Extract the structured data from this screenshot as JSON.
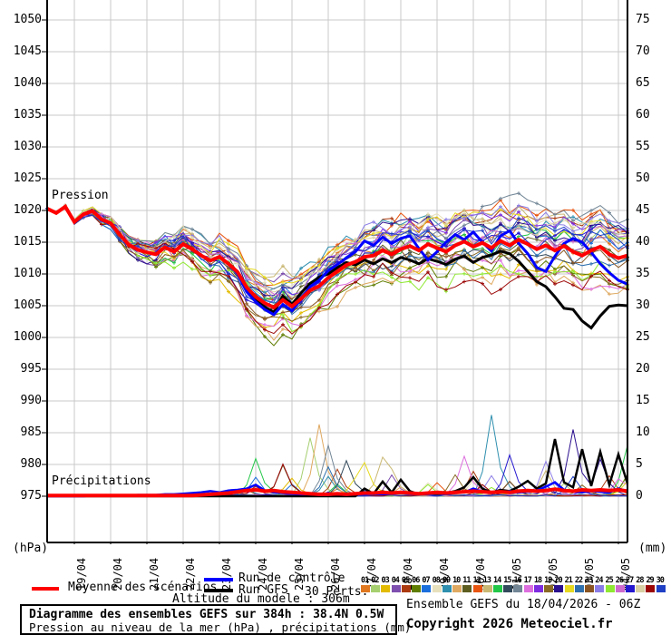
{
  "chart_data": {
    "type": "line",
    "description": "GEFS ensemble diagram: sea-level pressure (top curves) and precipitation (bottom spikes) for 33 runs over 384h",
    "step_hours": 6,
    "total_hours": 384,
    "x_dates": [
      "19/04",
      "20/04",
      "21/04",
      "22/04",
      "23/04",
      "24/04",
      "25/04",
      "26/04",
      "27/04",
      "28/04",
      "29/04",
      "30/04",
      "01/05",
      "02/05",
      "03/05",
      "04/05"
    ],
    "pressure_axis": {
      "label": "(hPa)",
      "min": 975,
      "max": 1050,
      "tick": 5
    },
    "precip_axis": {
      "label": "(mm)",
      "min": 0,
      "max": 75,
      "tick": 5
    },
    "title_labels": {
      "pressure": "Pression",
      "precip": "Précipitations"
    },
    "grid": true,
    "series": {
      "mean_pressure": [
        1020.3,
        1019.6,
        1020.6,
        1018.2,
        1019.4,
        1019.9,
        1018.6,
        1018.0,
        1016.2,
        1014.6,
        1013.8,
        1013.4,
        1013.1,
        1014.2,
        1013.5,
        1014.7,
        1013.9,
        1012.9,
        1012.1,
        1012.7,
        1011.6,
        1010.3,
        1007.9,
        1006.4,
        1005.4,
        1004.7,
        1005.9,
        1004.9,
        1006.1,
        1007.4,
        1008.1,
        1009.4,
        1010.4,
        1011.4,
        1011.9,
        1012.7,
        1012.9,
        1013.7,
        1013.1,
        1013.9,
        1014.4,
        1013.7,
        1014.7,
        1014.1,
        1013.5,
        1014.5,
        1015.1,
        1014.3,
        1014.9,
        1014.1,
        1015.2,
        1014.5,
        1015.4,
        1014.7,
        1013.9,
        1014.5,
        1013.7,
        1014.4,
        1013.5,
        1012.9,
        1013.7,
        1014.3,
        1013.1,
        1012.5,
        1012.9
      ],
      "control_pressure": [
        1020.3,
        1019.6,
        1020.6,
        1018.2,
        1019.4,
        1019.9,
        1018.6,
        1018.0,
        1016.2,
        1014.6,
        1013.8,
        1013.4,
        1013.1,
        1014.2,
        1013.5,
        1014.7,
        1013.9,
        1012.9,
        1012.1,
        1012.7,
        1011.6,
        1010.0,
        1007.2,
        1005.6,
        1004.4,
        1003.6,
        1005.2,
        1004.2,
        1006.0,
        1008.0,
        1009.0,
        1010.5,
        1011.5,
        1012.5,
        1013.5,
        1015.2,
        1014.5,
        1015.8,
        1014.8,
        1015.6,
        1016.0,
        1014.0,
        1012.2,
        1013.5,
        1015.0,
        1016.2,
        1015.4,
        1016.6,
        1015.0,
        1013.6,
        1016.0,
        1016.8,
        1014.8,
        1013.2,
        1011.0,
        1010.4,
        1012.8,
        1014.8,
        1015.6,
        1015.0,
        1013.4,
        1011.6,
        1010.2,
        1009.0,
        1008.4
      ],
      "gfs_pressure": [
        1020.3,
        1019.6,
        1020.6,
        1018.2,
        1019.4,
        1019.9,
        1018.6,
        1018.0,
        1016.2,
        1014.6,
        1013.8,
        1013.4,
        1013.1,
        1014.2,
        1013.5,
        1014.7,
        1013.9,
        1012.9,
        1012.1,
        1012.7,
        1011.6,
        1010.3,
        1007.5,
        1005.8,
        1004.8,
        1004.0,
        1006.5,
        1005.2,
        1007.0,
        1008.5,
        1009.5,
        1010.0,
        1011.0,
        1011.8,
        1011.4,
        1012.2,
        1011.6,
        1012.4,
        1011.8,
        1012.6,
        1012.2,
        1011.6,
        1012.4,
        1012.0,
        1011.5,
        1012.3,
        1012.8,
        1011.8,
        1012.6,
        1013.0,
        1013.6,
        1013.2,
        1012.0,
        1010.4,
        1008.8,
        1008.0,
        1006.4,
        1004.6,
        1004.4,
        1002.6,
        1001.5,
        1003.4,
        1004.9,
        1005.1,
        1005.0
      ],
      "mean_precip": [
        0.1,
        0.1,
        0.1,
        0.1,
        0.1,
        0.1,
        0.1,
        0.1,
        0.1,
        0.1,
        0.1,
        0.1,
        0.1,
        0.1,
        0.1,
        0.1,
        0.1,
        0.2,
        0.3,
        0.4,
        0.5,
        0.7,
        0.9,
        1.0,
        0.8,
        0.9,
        0.7,
        0.6,
        0.5,
        0.4,
        0.3,
        0.3,
        0.4,
        0.3,
        0.4,
        0.5,
        0.5,
        0.6,
        0.5,
        0.6,
        0.5,
        0.4,
        0.5,
        0.6,
        0.5,
        0.6,
        0.7,
        0.8,
        0.7,
        0.6,
        0.7,
        0.6,
        0.8,
        0.9,
        0.8,
        0.9,
        1.1,
        0.9,
        0.8,
        1.0,
        0.9,
        1.0,
        0.9,
        1.0,
        0.8
      ],
      "control_precip": [
        0,
        0,
        0,
        0,
        0,
        0.1,
        0.1,
        0.1,
        0.1,
        0.1,
        0.2,
        0.2,
        0.2,
        0.3,
        0.3,
        0.4,
        0.5,
        0.6,
        0.8,
        0.6,
        0.9,
        1.0,
        1.2,
        1.8,
        0.9,
        0.6,
        0.5,
        0.4,
        0.3,
        0.3,
        0.2,
        0.2,
        0.3,
        0.2,
        0.3,
        0.3,
        0.4,
        0.3,
        0.4,
        0.5,
        0.4,
        0.3,
        0.4,
        0.5,
        0.4,
        0.5,
        0.6,
        1.2,
        0.7,
        0.5,
        0.6,
        0.8,
        0.6,
        0.7,
        0.9,
        1.5,
        2.2,
        1.0,
        0.7,
        0.6,
        0.8,
        0.7,
        0.6,
        1.2,
        0.8
      ],
      "gfs_precip": [
        0,
        0,
        0,
        0,
        0,
        0,
        0,
        0,
        0,
        0,
        0,
        0,
        0,
        0,
        0,
        0,
        0,
        0,
        0,
        0,
        0,
        0,
        0,
        0,
        0,
        0,
        0,
        0,
        0,
        0,
        0,
        0,
        0,
        0,
        0,
        1.2,
        0.4,
        2.3,
        0.6,
        2.6,
        0.8,
        0.3,
        0.5,
        0.4,
        0.5,
        0.8,
        1.4,
        3.0,
        1.2,
        0.6,
        1.0,
        0.8,
        1.5,
        2.4,
        1.2,
        2.0,
        9.0,
        2.2,
        1.4,
        7.4,
        1.6,
        7.0,
        1.8,
        6.6,
        2.0
      ]
    },
    "members": {
      "count": 30,
      "labels": [
        "01",
        "02",
        "03",
        "04",
        "05",
        "06",
        "07",
        "08",
        "09",
        "10",
        "11",
        "12",
        "13",
        "14",
        "15",
        "16",
        "17",
        "18",
        "19",
        "20",
        "21",
        "22",
        "23",
        "24",
        "25",
        "26",
        "27",
        "28",
        "29",
        "30"
      ],
      "colors": [
        "#e07820",
        "#a6cf70",
        "#e3bb00",
        "#7e4fae",
        "#ab3a10",
        "#5f7d00",
        "#1b6fdd",
        "#e7e0bd",
        "#2f8fae",
        "#dfa961",
        "#5d5d20",
        "#e85510",
        "#c9b873",
        "#22c748",
        "#32495c",
        "#728696",
        "#dd6ede",
        "#7e2ce0",
        "#8a6a24",
        "#2a0f8e",
        "#e6d920",
        "#2e6fae",
        "#8a5522",
        "#8a7ce6",
        "#8fe832",
        "#ce6ace",
        "#2417cf",
        "#d8cfa4",
        "#9c0606",
        "#1f3fc4"
      ],
      "pressure_spread_hpa": {
        "start": 0,
        "day6": 6,
        "end": 11
      },
      "notable_precip_spikes": [
        {
          "member": 10,
          "step": 30,
          "mm": 11.3
        },
        {
          "member": 2,
          "step": 29,
          "mm": 9.2
        },
        {
          "member": 16,
          "step": 31,
          "mm": 8.0
        },
        {
          "member": 17,
          "step": 46,
          "mm": 6.3
        },
        {
          "member": 9,
          "step": 49,
          "mm": 12.8
        },
        {
          "member": 20,
          "step": 58,
          "mm": 10.5
        },
        {
          "member": 14,
          "step": 64,
          "mm": 8.0
        },
        {
          "member": 27,
          "step": 51,
          "mm": 6.5
        },
        {
          "member": 24,
          "step": 55,
          "mm": 5.5
        },
        {
          "member": 13,
          "step": 38,
          "mm": 4.3
        },
        {
          "member": 15,
          "step": 33,
          "mm": 5.6
        }
      ]
    },
    "line_colors": {
      "mean": "#ff0000",
      "control": "#0000ff",
      "gfs": "#000000",
      "grid": "#c9c9c9",
      "axis": "#000000"
    }
  },
  "legend": {
    "mean": "Moyenne des scénarios",
    "control": "Run de contrôle",
    "gfs": "Run GFS",
    "perts": "30 Perts.",
    "altitude": "Altitude du modele : 306m"
  },
  "footer": {
    "title": "Diagramme des ensembles GEFS sur 384h : 38.4N 0.5W",
    "subtitle": "Pression au niveau de la mer (hPa) , précipitations (mm)",
    "run_info": "Ensemble GEFS du 18/04/2026 - 06Z",
    "copyright": "Copyright 2026 Meteociel.fr"
  }
}
